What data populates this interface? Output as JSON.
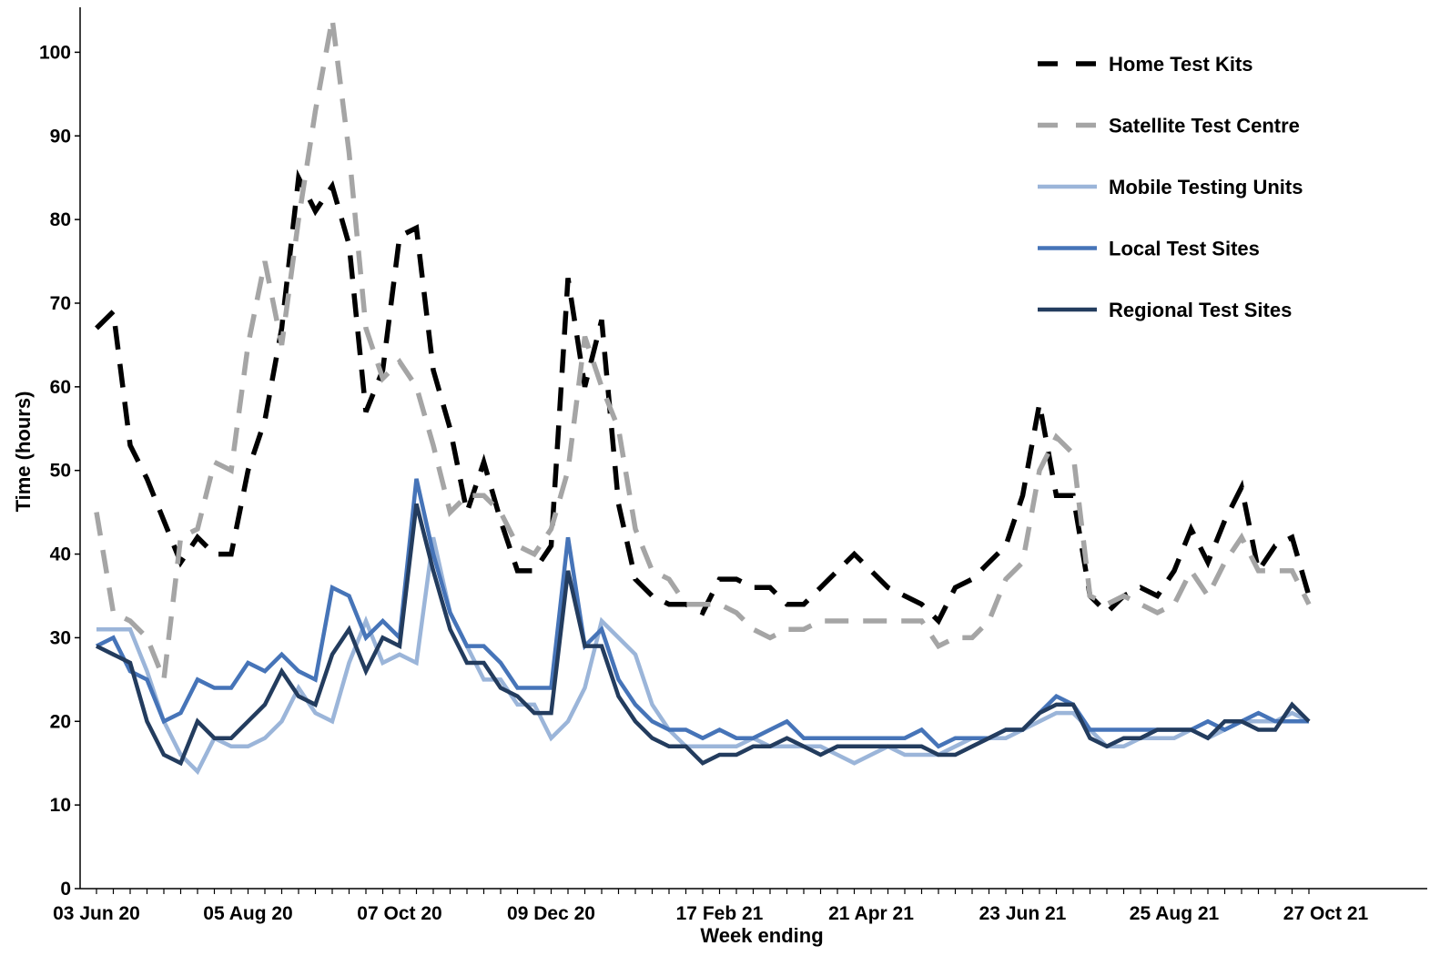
{
  "chart_data": {
    "type": "line",
    "title": "",
    "xlabel": "Week ending",
    "ylabel": "Time (hours)",
    "ylim": [
      0,
      105
    ],
    "yticks": [
      0,
      10,
      20,
      30,
      40,
      50,
      60,
      70,
      80,
      90,
      100
    ],
    "x_tick_labels": [
      "03 Jun 20",
      "05 Aug 20",
      "07 Oct 20",
      "09 Dec 20",
      "17 Feb 21",
      "21 Apr 21",
      "23 Jun 21",
      "25 Aug 21",
      "27 Oct 21"
    ],
    "x_tick_indices": [
      0,
      9,
      18,
      27,
      37,
      46,
      55,
      64,
      73
    ],
    "grid": false,
    "legend_position": "top-right",
    "series": [
      {
        "name": "Home Test Kits",
        "color": "#000000",
        "dash": "dashed",
        "values": [
          67,
          69,
          53,
          49,
          44,
          39,
          42,
          40,
          40,
          50,
          56,
          67,
          85,
          81,
          84,
          77,
          57,
          62,
          78,
          79,
          62,
          55,
          45,
          51,
          44,
          38,
          38,
          41,
          73,
          60,
          68,
          46,
          37,
          35,
          34,
          34,
          33,
          37,
          37,
          36,
          36,
          34,
          34,
          36,
          38,
          40,
          38,
          36,
          35,
          34,
          32,
          36,
          37,
          39,
          41,
          47,
          58,
          47,
          47,
          35,
          33,
          35,
          36,
          35,
          38,
          43,
          39,
          44,
          48,
          38,
          41,
          42,
          35
        ]
      },
      {
        "name": "Satellite Test Centre",
        "color": "#a5a5a5",
        "dash": "dashed",
        "values": [
          45,
          33,
          32,
          30,
          25,
          42,
          43,
          51,
          50,
          65,
          75,
          65,
          80,
          93,
          104,
          88,
          67,
          61,
          63,
          60,
          53,
          45,
          47,
          47,
          45,
          41,
          40,
          43,
          50,
          66,
          60,
          55,
          43,
          38,
          37,
          34,
          34,
          34,
          33,
          31,
          30,
          31,
          31,
          32,
          32,
          32,
          32,
          32,
          32,
          32,
          29,
          30,
          30,
          32,
          37,
          39,
          50,
          54,
          52,
          35,
          34,
          35,
          34,
          33,
          34,
          38,
          35,
          39,
          42,
          38,
          38,
          38,
          34
        ]
      },
      {
        "name": "Mobile Testing Units",
        "color": "#9bb5d9",
        "dash": "solid",
        "values": [
          31,
          31,
          31,
          26,
          20,
          16,
          14,
          18,
          17,
          17,
          18,
          20,
          24,
          21,
          20,
          27,
          32,
          27,
          28,
          27,
          42,
          33,
          29,
          25,
          25,
          22,
          22,
          18,
          20,
          24,
          32,
          30,
          28,
          22,
          19,
          17,
          17,
          17,
          17,
          18,
          17,
          17,
          17,
          17,
          16,
          15,
          16,
          17,
          16,
          16,
          16,
          17,
          18,
          18,
          18,
          19,
          20,
          21,
          21,
          19,
          17,
          17,
          18,
          18,
          18,
          19,
          18,
          19,
          20,
          20,
          20,
          21,
          20
        ]
      },
      {
        "name": "Local Test Sites",
        "color": "#4674b8",
        "dash": "solid",
        "values": [
          29,
          30,
          26,
          25,
          20,
          21,
          25,
          24,
          24,
          27,
          26,
          28,
          26,
          25,
          36,
          35,
          30,
          32,
          30,
          49,
          40,
          33,
          29,
          29,
          27,
          24,
          24,
          24,
          42,
          29,
          31,
          25,
          22,
          20,
          19,
          19,
          18,
          19,
          18,
          18,
          19,
          20,
          18,
          18,
          18,
          18,
          18,
          18,
          18,
          19,
          17,
          18,
          18,
          18,
          19,
          19,
          21,
          23,
          22,
          19,
          19,
          19,
          19,
          19,
          19,
          19,
          20,
          19,
          20,
          21,
          20,
          20,
          20
        ]
      },
      {
        "name": "Regional Test Sites",
        "color": "#233c5e",
        "dash": "solid",
        "values": [
          29,
          28,
          27,
          20,
          16,
          15,
          20,
          18,
          18,
          20,
          22,
          26,
          23,
          22,
          28,
          31,
          26,
          30,
          29,
          46,
          38,
          31,
          27,
          27,
          24,
          23,
          21,
          21,
          38,
          29,
          29,
          23,
          20,
          18,
          17,
          17,
          15,
          16,
          16,
          17,
          17,
          18,
          17,
          16,
          17,
          17,
          17,
          17,
          17,
          17,
          16,
          16,
          17,
          18,
          19,
          19,
          21,
          22,
          22,
          18,
          17,
          18,
          18,
          19,
          19,
          19,
          18,
          20,
          20,
          19,
          19,
          22,
          20
        ]
      }
    ]
  }
}
